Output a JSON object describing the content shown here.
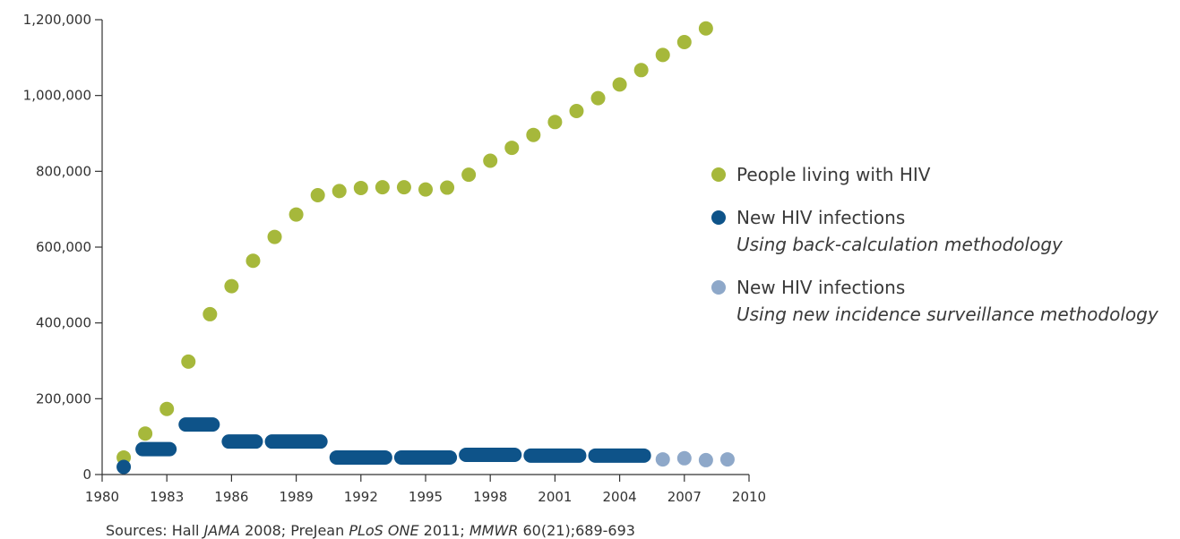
{
  "chart_data": {
    "type": "scatter",
    "xlim": [
      1980,
      2010
    ],
    "ylim": [
      0,
      1200000
    ],
    "x_ticks": [
      "1980",
      "1983",
      "1986",
      "1989",
      "1992",
      "1995",
      "1998",
      "2001",
      "2004",
      "2007",
      "2010"
    ],
    "x_tick_values": [
      1980,
      1983,
      1986,
      1989,
      1992,
      1995,
      1998,
      2001,
      2004,
      2007,
      2010
    ],
    "y_ticks": [
      "0",
      "200,000",
      "400,000",
      "600,000",
      "800,000",
      "1,000,000",
      "1,200,000"
    ],
    "y_tick_values": [
      0,
      200000,
      400000,
      600000,
      800000,
      1000000,
      1200000
    ],
    "grid": false,
    "legend_position": "right",
    "series": [
      {
        "name": "People living with HIV",
        "color": "#a6b83b",
        "marker": "dot",
        "points": [
          [
            1981,
            45000
          ],
          [
            1982,
            108000
          ],
          [
            1983,
            173000
          ],
          [
            1984,
            298000
          ],
          [
            1985,
            423000
          ],
          [
            1986,
            497000
          ],
          [
            1987,
            564000
          ],
          [
            1988,
            627000
          ],
          [
            1989,
            686000
          ],
          [
            1990,
            737000
          ],
          [
            1991,
            748000
          ],
          [
            1992,
            756000
          ],
          [
            1993,
            758000
          ],
          [
            1994,
            758000
          ],
          [
            1995,
            752000
          ],
          [
            1996,
            757000
          ],
          [
            1997,
            791000
          ],
          [
            1998,
            828000
          ],
          [
            1999,
            862000
          ],
          [
            2000,
            896000
          ],
          [
            2001,
            930000
          ],
          [
            2002,
            959000
          ],
          [
            2003,
            993000
          ],
          [
            2004,
            1029000
          ],
          [
            2005,
            1067000
          ],
          [
            2006,
            1107000
          ],
          [
            2007,
            1141000
          ],
          [
            2008,
            1177000
          ]
        ]
      },
      {
        "name": "New HIV infections",
        "subtitle": "Using back-calculation methodology",
        "color": "#0e5389",
        "marker": "dot",
        "points": [
          [
            1981,
            20000
          ]
        ],
        "ranges": [
          {
            "x_start": 1982,
            "x_end": 1983,
            "value": 67000
          },
          {
            "x_start": 1984,
            "x_end": 1985,
            "value": 132000
          },
          {
            "x_start": 1986,
            "x_end": 1987,
            "value": 87000
          },
          {
            "x_start": 1988,
            "x_end": 1990,
            "value": 87000
          },
          {
            "x_start": 1991,
            "x_end": 1993,
            "value": 45000
          },
          {
            "x_start": 1994,
            "x_end": 1996,
            "value": 45000
          },
          {
            "x_start": 1997,
            "x_end": 1999,
            "value": 52000
          },
          {
            "x_start": 2000,
            "x_end": 2002,
            "value": 50000
          },
          {
            "x_start": 2003,
            "x_end": 2005,
            "value": 50000
          }
        ]
      },
      {
        "name": "New HIV infections",
        "subtitle": "Using new incidence surveillance methodology",
        "color": "#8ea8c9",
        "marker": "dot",
        "points": [
          [
            2006,
            40000
          ],
          [
            2007,
            43000
          ],
          [
            2008,
            38000
          ],
          [
            2009,
            40000
          ]
        ]
      }
    ]
  },
  "legend": [
    {
      "label": "People living with HIV",
      "sub": "",
      "color": "#a6b83b"
    },
    {
      "label": "New HIV infections",
      "sub": "Using back-calculation methodology",
      "color": "#0e5389"
    },
    {
      "label": "New HIV infections",
      "sub": "Using new incidence surveillance methodology",
      "color": "#8ea8c9"
    }
  ],
  "sources": {
    "prefix": "Sources: Hall ",
    "j1": "JAMA",
    "t1": " 2008; PreJean ",
    "j2": "PLoS ONE",
    "t2": " 2011; ",
    "j3": "MMWR",
    "t3": " 60(21);689-693"
  }
}
